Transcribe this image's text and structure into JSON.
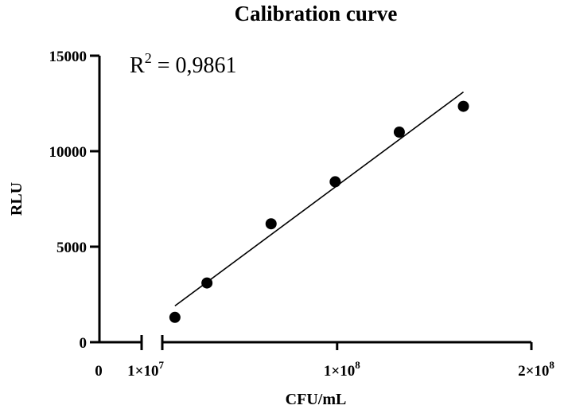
{
  "chart_data": {
    "type": "scatter",
    "title": "Calibration curve",
    "xlabel": "CFU/mL",
    "ylabel": "RLU",
    "annotation": {
      "base": "R",
      "sup": "2",
      "rest": " = 0,9861"
    },
    "y_axis": {
      "range": [
        0,
        15000
      ],
      "ticks": [
        {
          "value": 0,
          "label": "0"
        },
        {
          "value": 5000,
          "label": "5000"
        },
        {
          "value": 10000,
          "label": "10000"
        },
        {
          "value": 15000,
          "label": "15000"
        }
      ]
    },
    "x_axis": {
      "broken": true,
      "segment1": {
        "range": [
          0,
          10000000
        ],
        "ticks": [
          {
            "value": 0,
            "label": "0"
          },
          {
            "value": 10000000,
            "label": "1×10",
            "exp": "7"
          }
        ]
      },
      "segment2": {
        "range": [
          10000000,
          200000000
        ],
        "ticks": [
          {
            "value": 100000000,
            "label": "1×10",
            "exp": "8"
          },
          {
            "value": 200000000,
            "label": "2×10",
            "exp": "8"
          }
        ]
      }
    },
    "series": [
      {
        "points": [
          {
            "x": 16500000,
            "y": 1300
          },
          {
            "x": 33000000,
            "y": 3100
          },
          {
            "x": 66000000,
            "y": 6200
          },
          {
            "x": 99000000,
            "y": 8400
          },
          {
            "x": 132000000,
            "y": 11000
          },
          {
            "x": 165000000,
            "y": 12350
          }
        ]
      }
    ],
    "fit_line": {
      "x": [
        16500000,
        165000000
      ],
      "y": [
        1900,
        13100
      ]
    }
  }
}
